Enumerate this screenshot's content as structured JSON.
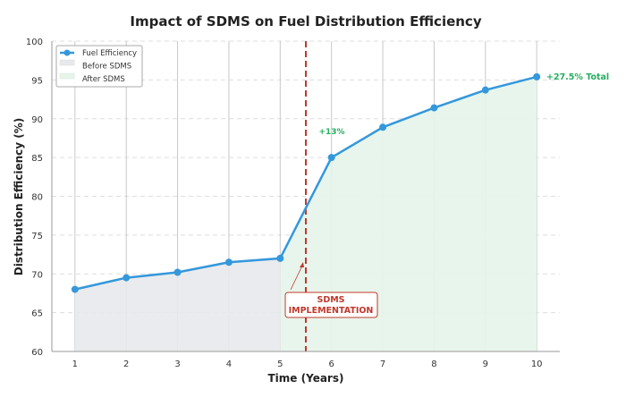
{
  "chart_data": {
    "type": "line",
    "title": "Impact of SDMS on Fuel Distribution Efficiency",
    "xlabel": "Time (Years)",
    "ylabel": "Distribution Efficiency (%)",
    "x": [
      1,
      2,
      3,
      4,
      5,
      6,
      7,
      8,
      9,
      10
    ],
    "xticks": [
      "1",
      "2",
      "3",
      "4",
      "5",
      "6",
      "7",
      "8",
      "9",
      "10"
    ],
    "yticks": [
      "60",
      "65",
      "70",
      "75",
      "80",
      "85",
      "90",
      "95",
      "100"
    ],
    "xlim": [
      0.55,
      10.45
    ],
    "ylim": [
      60,
      100
    ],
    "series": [
      {
        "name": "Fuel Efficiency",
        "values": [
          68,
          69.5,
          70.2,
          71.5,
          72,
          85,
          88.9,
          91.4,
          93.7,
          95.4
        ],
        "color": "#3498db"
      }
    ],
    "legend": {
      "position": "top-left",
      "entries": [
        "Fuel Efficiency",
        "Before SDMS",
        "After SDMS"
      ]
    },
    "fills": {
      "before_color": "#e8e9ec",
      "after_color": "#e6f4ea"
    },
    "implementation_x": 5.5,
    "implementation_color": "#c0392b",
    "annotations": {
      "implementation": [
        "SDMS",
        "IMPLEMENTATION"
      ],
      "jump": "+13%",
      "total": "+27.5% Total"
    },
    "annotation_color": "#27ae60",
    "grid": true
  }
}
